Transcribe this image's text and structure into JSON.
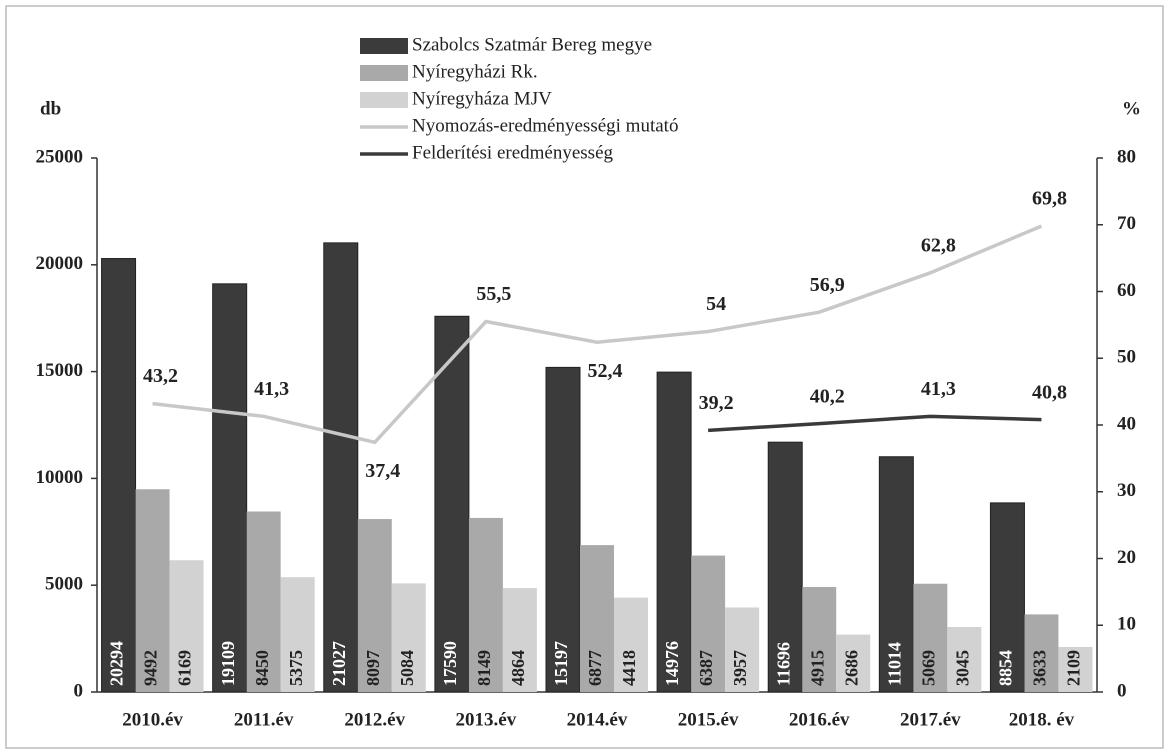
{
  "chart_data": {
    "type": "bar",
    "categories": [
      "2010.év",
      "2011.év",
      "2012.év",
      "2013.év",
      "2014.év",
      "2015.év",
      "2016.év",
      "2017.év",
      "2018. év"
    ],
    "y_label": "db",
    "y2_label": "%",
    "ylim": [
      0,
      25000
    ],
    "yticks": [
      0,
      5000,
      10000,
      15000,
      20000,
      25000
    ],
    "y2lim": [
      0,
      80
    ],
    "y2ticks": [
      0,
      10,
      20,
      30,
      40,
      50,
      60,
      70,
      80
    ],
    "series": [
      {
        "name": "Szabolcs Szatmár Bereg megye",
        "type": "bar",
        "color": "#3b3b3b",
        "values": [
          20294,
          19109,
          21027,
          17590,
          15197,
          14976,
          11696,
          11014,
          8854
        ]
      },
      {
        "name": "Nyíregyházi Rk.",
        "type": "bar",
        "color": "#a9a9a9",
        "values": [
          9492,
          8450,
          8097,
          8149,
          6877,
          6387,
          4915,
          5069,
          3633
        ]
      },
      {
        "name": "Nyíregyháza MJV",
        "type": "bar",
        "color": "#d2d2d2",
        "values": [
          6169,
          5375,
          5084,
          4864,
          4418,
          3957,
          2686,
          3045,
          2109
        ]
      },
      {
        "name": "Nyomozás-eredményességi mutató",
        "type": "line",
        "axis": "y2",
        "color": "#c8c8c8",
        "values": [
          43.2,
          41.3,
          37.4,
          55.5,
          52.4,
          54,
          56.9,
          62.8,
          69.8
        ],
        "value_labels": [
          "43,2",
          "41,3",
          "37,4",
          "55,5",
          "52,4",
          "54",
          "56,9",
          "62,8",
          "69,8"
        ]
      },
      {
        "name": "Felderítési eredményesség",
        "type": "line",
        "axis": "y2",
        "color": "#3a3a3a",
        "values": [
          null,
          null,
          null,
          null,
          null,
          39.2,
          40.2,
          41.3,
          40.8
        ],
        "value_labels": [
          null,
          null,
          null,
          null,
          null,
          "39,2",
          "40,2",
          "41,3",
          "40,8"
        ]
      }
    ]
  }
}
